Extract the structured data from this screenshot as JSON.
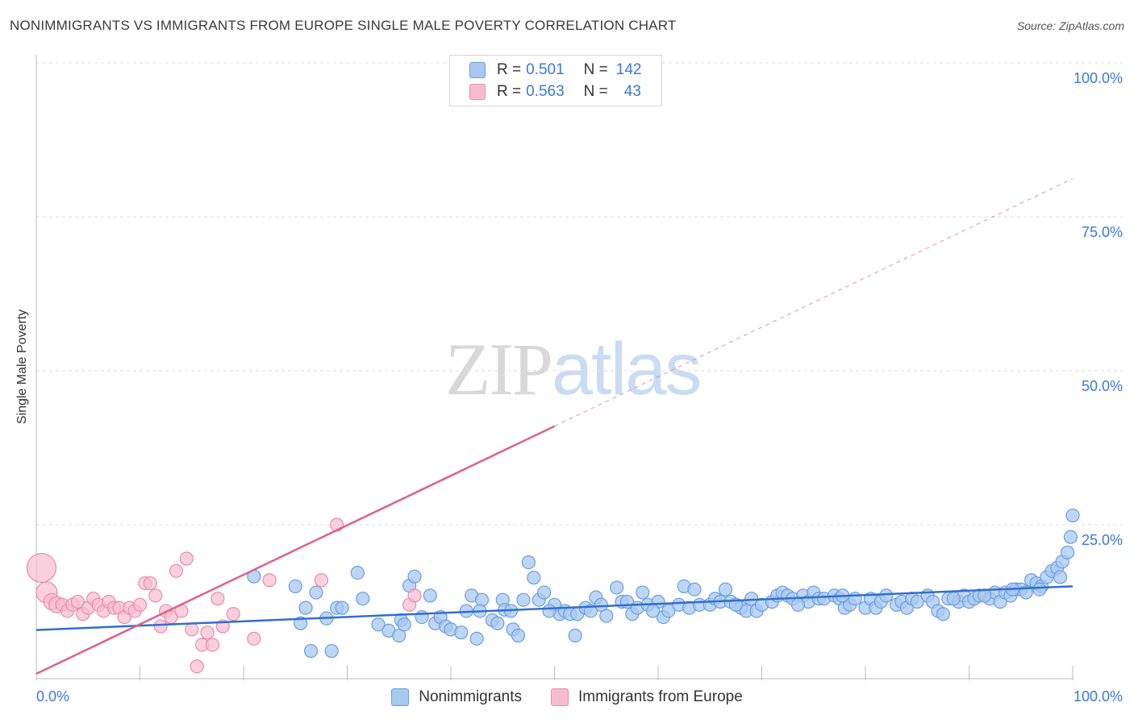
{
  "header": {
    "title": "NONIMMIGRANTS VS IMMIGRANTS FROM EUROPE SINGLE MALE POVERTY CORRELATION CHART",
    "source": "Source: ZipAtlas.com"
  },
  "watermark": {
    "zip": "ZIP",
    "atlas": "atlas"
  },
  "legend_top": {
    "rows": [
      {
        "r_label": "R =",
        "r_value": "0.501",
        "n_label": "N =",
        "n_value": "142"
      },
      {
        "r_label": "R =",
        "r_value": "0.563",
        "n_label": "N =",
        "n_value": "43"
      }
    ]
  },
  "legend_bottom": {
    "items": [
      {
        "label": "Nonimmigrants"
      },
      {
        "label": "Immigrants from Europe"
      }
    ]
  },
  "colors": {
    "blue_fill": "#a8c8f0",
    "blue_stroke": "#6a9ede",
    "blue_line": "#2f6fd0",
    "pink_fill": "#f8bcd0",
    "pink_stroke": "#e88aaa",
    "pink_line": "#e0608a",
    "grid": "#dddddd",
    "tick_text": "#3c78d8"
  },
  "chart_data": {
    "type": "scatter",
    "title": "NONIMMIGRANTS VS IMMIGRANTS FROM EUROPE SINGLE MALE POVERTY CORRELATION CHART",
    "xlabel": "",
    "ylabel": "Single Male Poverty",
    "xlim": [
      0,
      100
    ],
    "ylim": [
      0,
      100
    ],
    "x_tick_labels": [
      "0.0%",
      "100.0%"
    ],
    "y_tick_labels": [
      "25.0%",
      "50.0%",
      "75.0%",
      "100.0%"
    ],
    "y_tick_values": [
      25,
      50,
      75,
      100
    ],
    "grid": true,
    "legend_position": "top-center",
    "series": [
      {
        "name": "Nonimmigrants",
        "R": 0.501,
        "N": 142,
        "trend": {
          "x": [
            0,
            100
          ],
          "y": [
            7.9,
            15.0
          ],
          "style": "solid"
        },
        "points": [
          [
            21,
            16.6
          ],
          [
            25,
            15.0
          ],
          [
            25.5,
            9
          ],
          [
            26,
            11.5
          ],
          [
            26.5,
            4.5
          ],
          [
            27,
            14.0
          ],
          [
            28,
            9.8
          ],
          [
            28.5,
            4.5
          ],
          [
            29,
            11.5
          ],
          [
            29.5,
            11.5
          ],
          [
            31,
            17.2
          ],
          [
            31.5,
            13
          ],
          [
            33,
            8.8
          ],
          [
            34,
            7.8
          ],
          [
            35,
            7.0
          ],
          [
            35.2,
            9.5
          ],
          [
            35.5,
            8.8
          ],
          [
            36,
            15.1
          ],
          [
            36.5,
            16.6
          ],
          [
            38,
            13.5
          ],
          [
            38.5,
            9
          ],
          [
            39,
            10.0
          ],
          [
            39.5,
            8.5
          ],
          [
            40,
            8.0
          ],
          [
            41,
            7.5
          ],
          [
            41.5,
            11.0
          ],
          [
            42,
            13.5
          ],
          [
            42.5,
            6.5
          ],
          [
            43,
            12.8
          ],
          [
            44,
            9.5
          ],
          [
            44.5,
            9.0
          ],
          [
            45,
            12.8
          ],
          [
            45.2,
            11.2
          ],
          [
            46,
            8.0
          ],
          [
            46.5,
            7.0
          ],
          [
            47,
            12.8
          ],
          [
            47.5,
            18.9
          ],
          [
            48,
            16.4
          ],
          [
            48.5,
            12.8
          ],
          [
            49,
            14.0
          ],
          [
            50,
            12.0
          ],
          [
            50.5,
            10.5
          ],
          [
            51,
            11.0
          ],
          [
            51.5,
            10.5
          ],
          [
            52,
            7.0
          ],
          [
            52.2,
            10.5
          ],
          [
            53,
            11.5
          ],
          [
            53.5,
            11.0
          ],
          [
            54,
            13.2
          ],
          [
            55,
            10.2
          ],
          [
            56,
            14.8
          ],
          [
            56.5,
            12.5
          ],
          [
            57,
            12.5
          ],
          [
            57.5,
            10.5
          ],
          [
            58,
            11.5
          ],
          [
            58.5,
            14.0
          ],
          [
            59,
            12.0
          ],
          [
            60,
            12.5
          ],
          [
            60.5,
            10.0
          ],
          [
            61,
            11.0
          ],
          [
            62,
            12.0
          ],
          [
            62.5,
            15.0
          ],
          [
            63,
            11.5
          ],
          [
            63.5,
            14.5
          ],
          [
            64,
            12.0
          ],
          [
            65,
            12.0
          ],
          [
            65.5,
            13.0
          ],
          [
            66,
            12.5
          ],
          [
            66.5,
            14.5
          ],
          [
            67,
            12.5
          ],
          [
            68,
            11.5
          ],
          [
            68.5,
            11.0
          ],
          [
            69,
            13.0
          ],
          [
            69.5,
            11.0
          ],
          [
            70,
            12.0
          ],
          [
            71,
            12.5
          ],
          [
            71.5,
            13.5
          ],
          [
            72,
            14.0
          ],
          [
            72.5,
            13.5
          ],
          [
            73,
            13.0
          ],
          [
            74,
            13.5
          ],
          [
            74.5,
            12.5
          ],
          [
            75,
            14.0
          ],
          [
            75.5,
            13.0
          ],
          [
            76,
            13.0
          ],
          [
            77,
            13.5
          ],
          [
            77.5,
            13.0
          ],
          [
            78,
            11.5
          ],
          [
            78.5,
            12.0
          ],
          [
            79,
            13.0
          ],
          [
            80,
            11.5
          ],
          [
            80.5,
            13.0
          ],
          [
            81,
            11.5
          ],
          [
            81.5,
            12.5
          ],
          [
            82,
            13.5
          ],
          [
            83,
            12.0
          ],
          [
            83.5,
            12.5
          ],
          [
            84,
            11.5
          ],
          [
            84.5,
            13.0
          ],
          [
            85,
            12.5
          ],
          [
            86,
            13.5
          ],
          [
            86.5,
            12.5
          ],
          [
            87,
            11.0
          ],
          [
            87.5,
            10.5
          ],
          [
            88,
            13.0
          ],
          [
            89,
            12.5
          ],
          [
            89.5,
            13.5
          ],
          [
            90,
            12.5
          ],
          [
            90.5,
            13.0
          ],
          [
            91,
            13.5
          ],
          [
            92,
            13.0
          ],
          [
            92.5,
            14.0
          ],
          [
            93,
            12.5
          ],
          [
            93.5,
            14.0
          ],
          [
            94,
            13.5
          ],
          [
            94.5,
            14.5
          ],
          [
            95,
            14.5
          ],
          [
            95.5,
            14.0
          ],
          [
            96,
            16.0
          ],
          [
            96.5,
            15.5
          ],
          [
            97,
            15.0
          ],
          [
            97.5,
            16.5
          ],
          [
            98,
            17.5
          ],
          [
            98.5,
            18.0
          ],
          [
            99,
            19.0
          ],
          [
            99.5,
            20.5
          ],
          [
            99.8,
            23.0
          ],
          [
            100,
            26.5
          ],
          [
            73.5,
            12.0
          ],
          [
            77.8,
            13.5
          ],
          [
            88.5,
            13.0
          ],
          [
            91.5,
            13.5
          ],
          [
            94.2,
            14.5
          ],
          [
            67.5,
            12.0
          ],
          [
            59.5,
            11.0
          ],
          [
            54.5,
            12.0
          ],
          [
            49.5,
            11.0
          ],
          [
            45.8,
            11.0
          ],
          [
            42.8,
            11.0
          ],
          [
            37.2,
            10.0
          ],
          [
            96.8,
            14.5
          ],
          [
            98.8,
            16.5
          ]
        ]
      },
      {
        "name": "Immigrants from Europe",
        "R": 0.563,
        "N": 43,
        "trend": {
          "x": [
            0,
            100
          ],
          "y": [
            0.8,
            81.2
          ],
          "solid_until_x": 50,
          "style": "solid-then-dashed"
        },
        "points": [
          [
            0.5,
            18.0
          ],
          [
            1,
            14.0
          ],
          [
            1.5,
            12.5
          ],
          [
            2,
            12.0
          ],
          [
            2.5,
            12.0
          ],
          [
            3,
            11.0
          ],
          [
            3.5,
            12.0
          ],
          [
            4,
            12.5
          ],
          [
            4.5,
            10.5
          ],
          [
            5,
            11.5
          ],
          [
            5.5,
            13.0
          ],
          [
            6,
            12.0
          ],
          [
            6.5,
            11.0
          ],
          [
            7,
            12.5
          ],
          [
            7.5,
            11.5
          ],
          [
            8,
            11.5
          ],
          [
            8.5,
            10.0
          ],
          [
            9,
            11.5
          ],
          [
            9.5,
            11.0
          ],
          [
            10,
            12.0
          ],
          [
            10.5,
            15.5
          ],
          [
            11,
            15.5
          ],
          [
            11.5,
            13.5
          ],
          [
            12,
            8.5
          ],
          [
            12.5,
            11.0
          ],
          [
            13,
            10.0
          ],
          [
            13.5,
            17.5
          ],
          [
            14,
            11.0
          ],
          [
            14.5,
            19.5
          ],
          [
            15,
            8.0
          ],
          [
            15.5,
            2.0
          ],
          [
            16,
            5.5
          ],
          [
            16.5,
            7.5
          ],
          [
            17,
            5.5
          ],
          [
            17.5,
            13.0
          ],
          [
            18,
            8.5
          ],
          [
            19,
            10.5
          ],
          [
            21,
            6.5
          ],
          [
            22.5,
            16.0
          ],
          [
            27.5,
            16.0
          ],
          [
            29,
            25.0
          ],
          [
            36,
            12.0
          ],
          [
            36.5,
            13.5
          ]
        ]
      }
    ]
  }
}
